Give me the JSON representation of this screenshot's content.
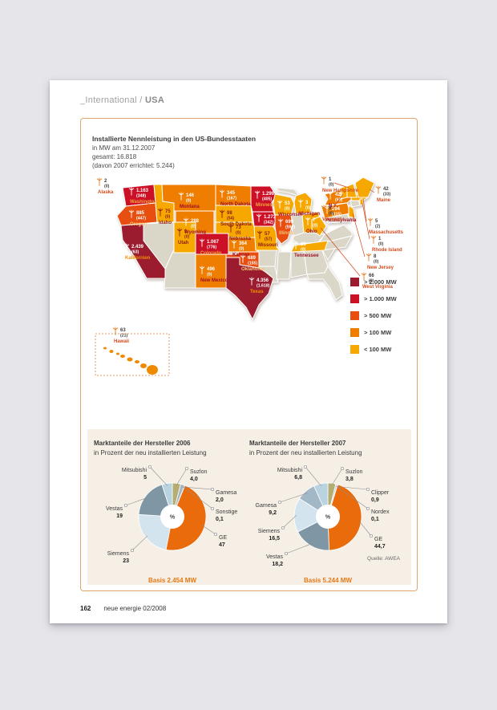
{
  "page": {
    "breadcrumb_prefix": "_International / ",
    "breadcrumb_section": "USA",
    "footer_page": "162",
    "footer_text": "neue energie 02/2008"
  },
  "map": {
    "title": "Installierte Nennleistung in den US-Bundesstaaten",
    "subtitle1": "in MW am 31.12.2007",
    "subtitle2": "gesamt: 16.818",
    "subtitle3": "(davon 2007 errichtet: 5.244)",
    "legend": [
      {
        "label": "> 2.000 MW",
        "color": "#9b1c2e"
      },
      {
        "label": "> 1.000 MW",
        "color": "#cc1127"
      },
      {
        "label": "> 500 MW",
        "color": "#e84e0f"
      },
      {
        "label": "> 100 MW",
        "color": "#ef7d00"
      },
      {
        "label": "< 100 MW",
        "color": "#f6a800"
      }
    ],
    "states": [
      {
        "id": "AK",
        "name": "Alaska",
        "value": "2",
        "added": "(0)",
        "cat": "lt100"
      },
      {
        "id": "HI",
        "name": "Hawaii",
        "value": "63",
        "added": "(21)",
        "cat": "lt100"
      },
      {
        "id": "WA",
        "name": "Washington",
        "value": "1.163",
        "added": "(348)",
        "cat": "gt1000"
      },
      {
        "id": "OR",
        "name": "Oregon",
        "value": "885",
        "added": "(447)",
        "cat": "gt500"
      },
      {
        "id": "CA",
        "name": "Kalifornien",
        "value": "2.439",
        "added": "(63)",
        "cat": "gt2000"
      },
      {
        "id": "ID",
        "name": "Idaho",
        "value": "75",
        "added": "(0)",
        "cat": "lt100"
      },
      {
        "id": "MT",
        "name": "Montana",
        "value": "146",
        "added": "(0)",
        "cat": "gt100"
      },
      {
        "id": "WY",
        "name": "Wyoming",
        "value": "288",
        "added": "(0)",
        "cat": "gt100"
      },
      {
        "id": "UT",
        "name": "Utah",
        "value": "1",
        "added": "(0)",
        "cat": "lt100"
      },
      {
        "id": "CO",
        "name": "Colorado",
        "value": "1.067",
        "added": "(776)",
        "cat": "gt1000"
      },
      {
        "id": "NM",
        "name": "New Mexico",
        "value": "496",
        "added": "(0)",
        "cat": "gt100"
      },
      {
        "id": "ND",
        "name": "North Dakota",
        "value": "345",
        "added": "(167)",
        "cat": "gt100"
      },
      {
        "id": "SD",
        "name": "South Dakota",
        "value": "98",
        "added": "(54)",
        "cat": "lt100"
      },
      {
        "id": "NE",
        "name": "Nebraska",
        "value": "73",
        "added": "(0)",
        "cat": "lt100"
      },
      {
        "id": "KS",
        "name": "Kansas",
        "value": "364",
        "added": "(0)",
        "cat": "gt100"
      },
      {
        "id": "OK",
        "name": "Oklahoma",
        "value": "689",
        "added": "(155)",
        "cat": "gt500"
      },
      {
        "id": "TX",
        "name": "Texas",
        "value": "4.356",
        "added": "(1.618)",
        "cat": "gt2000"
      },
      {
        "id": "MN",
        "name": "Minnesota",
        "value": "1.299",
        "added": "(405)",
        "cat": "gt1000"
      },
      {
        "id": "IA",
        "name": "Iowa",
        "value": "1.273",
        "added": "(342)",
        "cat": "gt1000"
      },
      {
        "id": "MO",
        "name": "Missouri",
        "value": "57",
        "added": "(57)",
        "cat": "lt100"
      },
      {
        "id": "WI",
        "name": "Wisconsin",
        "value": "53",
        "added": "(0)",
        "cat": "lt100"
      },
      {
        "id": "IL",
        "name": "Illinois",
        "value": "699",
        "added": "(592)",
        "cat": "gt500"
      },
      {
        "id": "MI",
        "name": "Michigan",
        "value": "3",
        "added": "(0)",
        "cat": "lt100"
      },
      {
        "id": "OH",
        "name": "Ohio",
        "value": "7",
        "added": "(0)",
        "cat": "lt100"
      },
      {
        "id": "TN",
        "name": "Tennessee",
        "value": "29",
        "added": "(0)",
        "cat": "lt100"
      },
      {
        "id": "NY",
        "name": "N.Y.",
        "value": "425",
        "added": "(65)",
        "cat": "gt100"
      },
      {
        "id": "PA",
        "name": "Pennsylvania",
        "value": "294",
        "added": "(115)",
        "cat": "gt100"
      },
      {
        "id": "WV",
        "name": "West Virginia",
        "value": "66",
        "added": "(0)",
        "cat": "lt100"
      },
      {
        "id": "NJ",
        "name": "New Jersey",
        "value": "8",
        "added": "(0)",
        "cat": "lt100"
      },
      {
        "id": "MA",
        "name": "Massachusetts",
        "value": "5",
        "added": "(2)",
        "cat": "lt100"
      },
      {
        "id": "RI",
        "name": "Rhode Island",
        "value": "1",
        "added": "(0)",
        "cat": "lt100"
      },
      {
        "id": "VT",
        "name": "Vermont",
        "value": "6",
        "added": "(0)",
        "cat": "lt100"
      },
      {
        "id": "NH",
        "name": "New Hampshire",
        "value": "1",
        "added": "(0)",
        "cat": "lt100"
      },
      {
        "id": "ME",
        "name": "Maine",
        "value": "42",
        "added": "(33)",
        "cat": "lt100"
      }
    ]
  },
  "manufacturer_colors": {
    "GE": "#e96b0c",
    "Siemens": "#d3e4ee",
    "Vestas": "#7f96a5",
    "Mitsubishi": "#b9d3e0",
    "Suzlon": "#b5ad72",
    "Gamesa": "#a3b8c6",
    "Sonstige": "#8f8f82",
    "Clipper": "#ccd2d4",
    "Nordex": "#5f6e63"
  },
  "chart_data": [
    {
      "type": "pie",
      "title": "Marktanteile der Hersteller 2006",
      "subtitle": "in Prozent der neu installierten Leistung",
      "center_label": "%",
      "basis": "Basis 2.454 MW",
      "labels": [
        "Suzlon",
        "Gamesa",
        "Sonstige",
        "GE",
        "Siemens",
        "Vestas",
        "Mitsubishi"
      ],
      "values": [
        4.0,
        2.0,
        0.1,
        47,
        23,
        19,
        5
      ],
      "value_labels": [
        "4,0",
        "2,0",
        "0,1",
        "47",
        "23",
        "19",
        "5"
      ]
    },
    {
      "type": "pie",
      "title": "Marktanteile der Hersteller 2007",
      "subtitle": "in Prozent der neu installierten Leistung",
      "center_label": "%",
      "basis": "Basis 5.244 MW",
      "source": "Quelle: AWEA",
      "labels": [
        "Suzlon",
        "Clipper",
        "Nordex",
        "GE",
        "Vestas",
        "Siemens",
        "Gamesa",
        "Mitsubishi"
      ],
      "values": [
        3.8,
        0.9,
        0.1,
        44.7,
        18.2,
        16.5,
        9.2,
        6.8
      ],
      "value_labels": [
        "3,8",
        "0,9",
        "0,1",
        "44,7",
        "18,2",
        "16,5",
        "9,2",
        "6,8"
      ]
    }
  ]
}
